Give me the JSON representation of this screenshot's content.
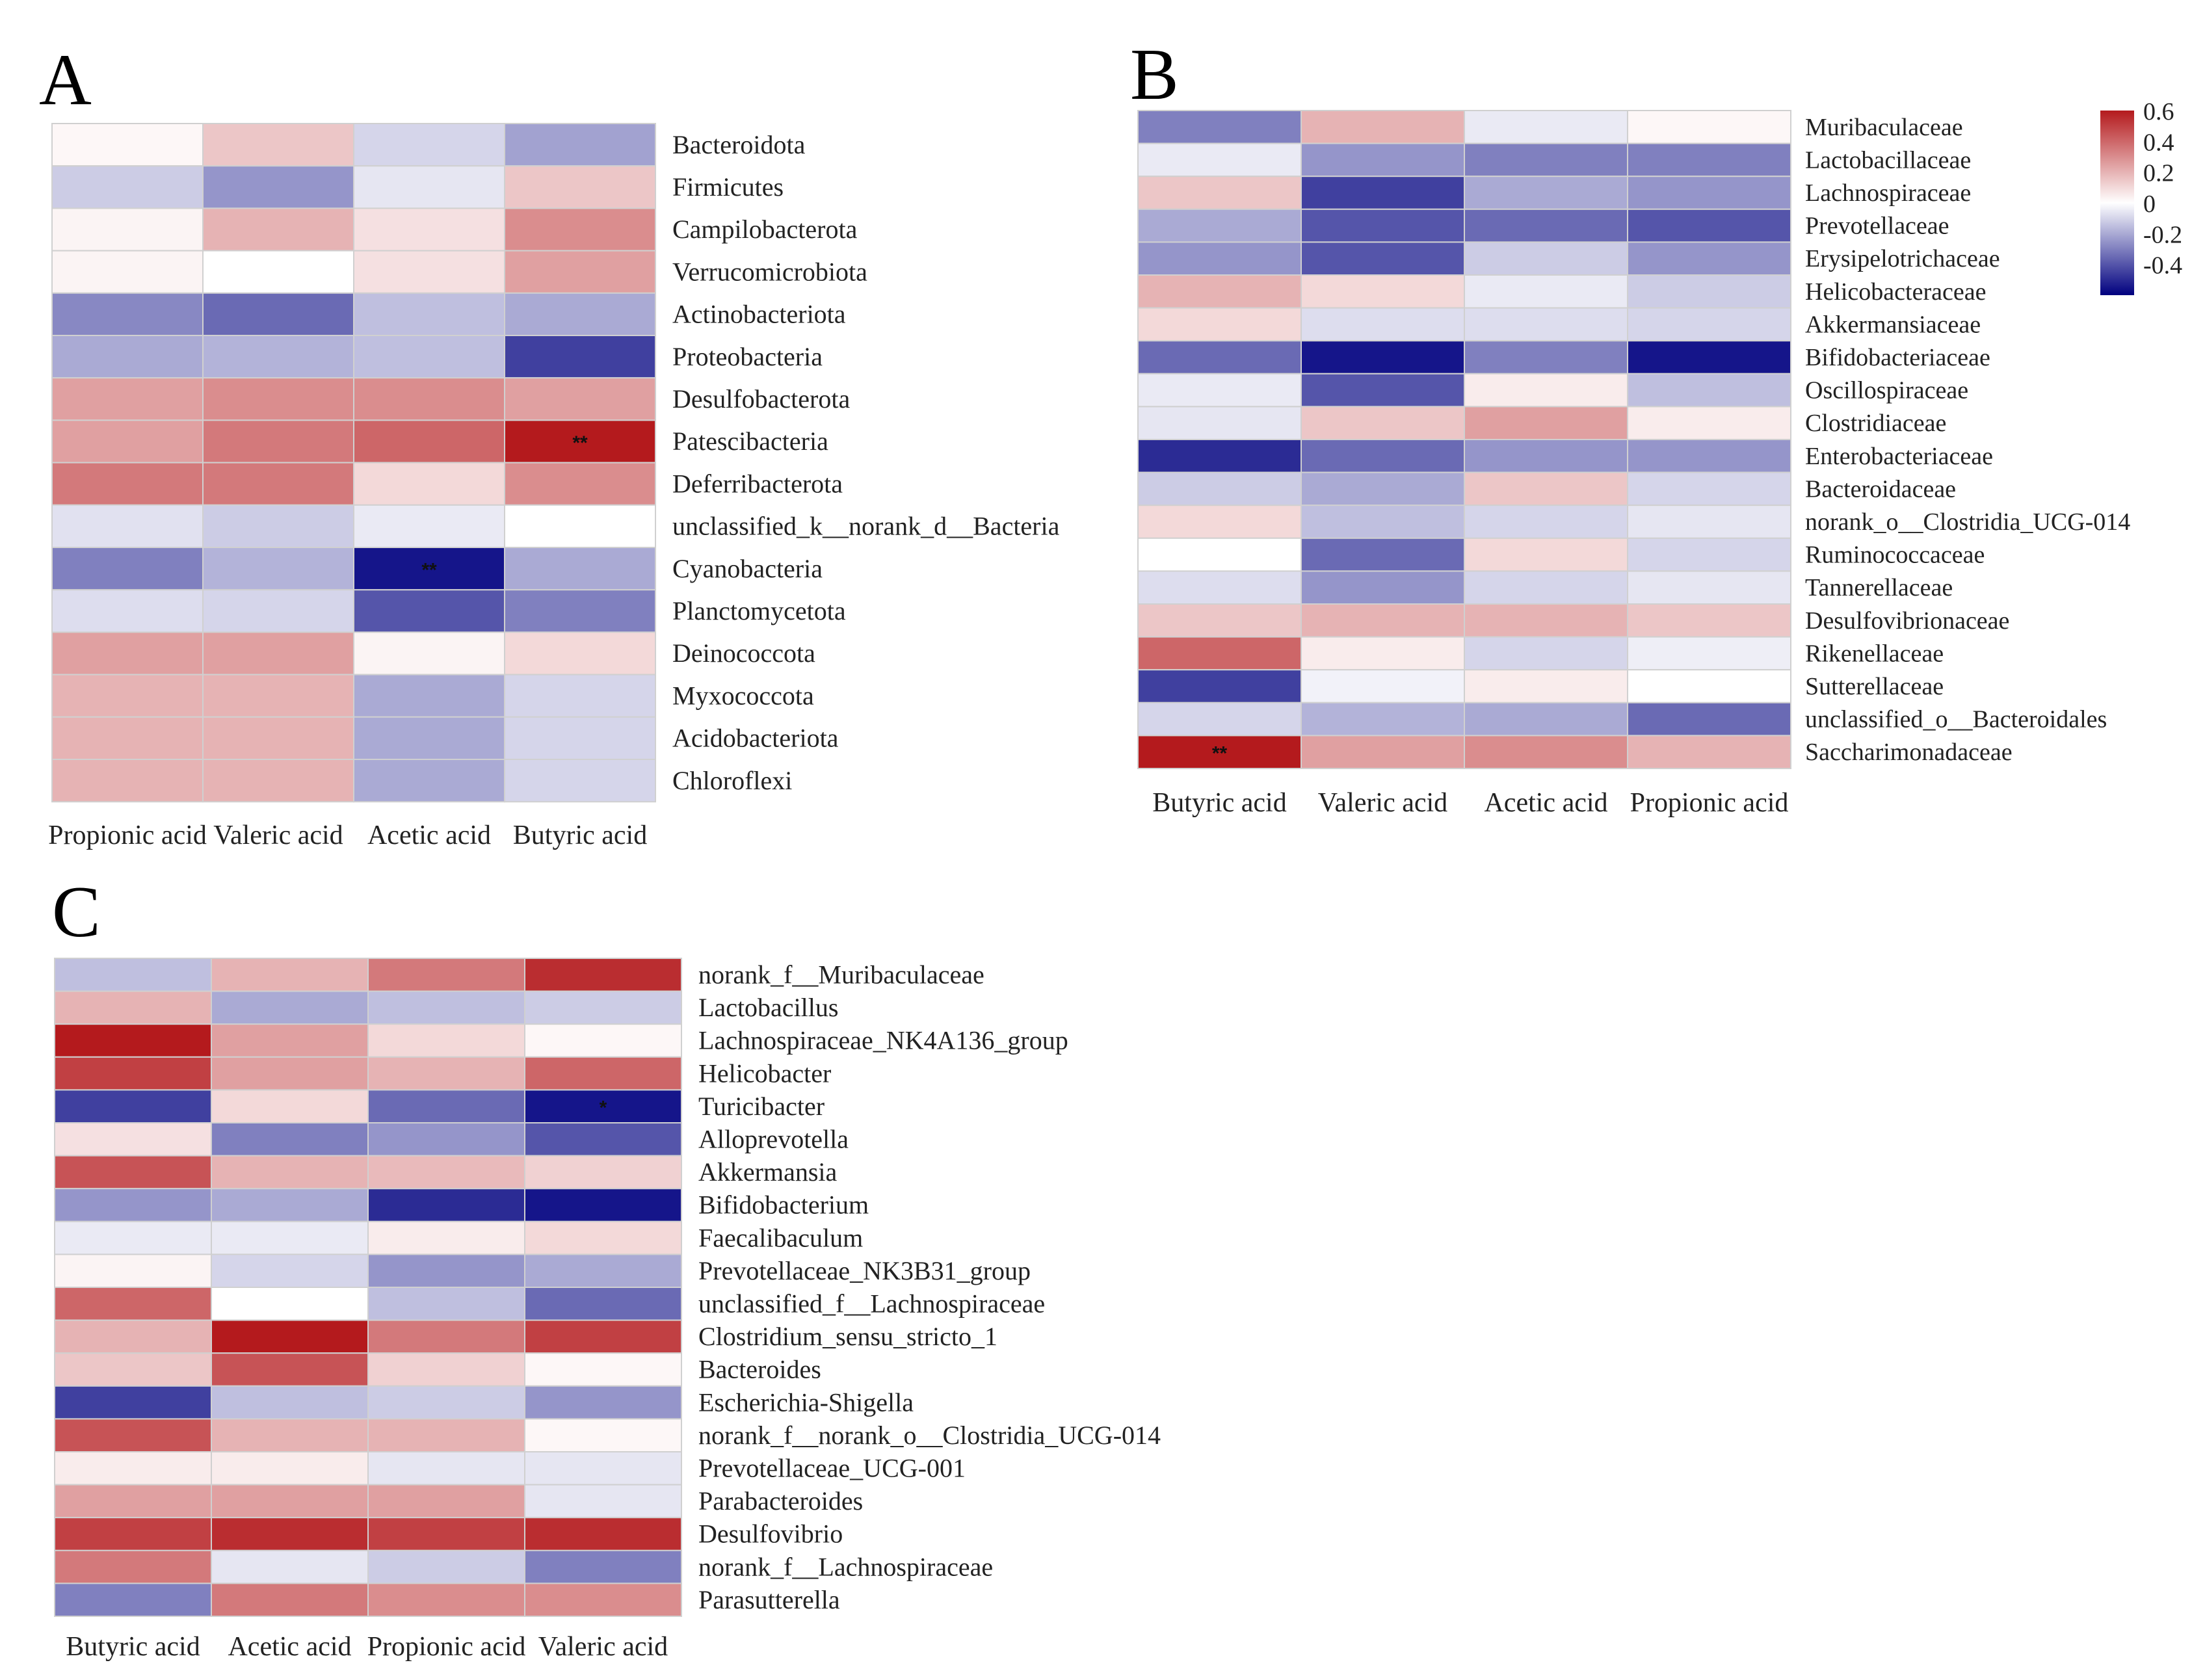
{
  "colors": {
    "neg": "#00007f",
    "mid": "#ffffff",
    "pos": "#b41a1d",
    "grid": "#d0d0d0"
  },
  "colorbar": {
    "max_label": "0.6",
    "ticks": [
      "0.6",
      "0.4",
      "0.2",
      "0",
      "-0.2",
      "-0.4"
    ]
  },
  "chart_data": [
    {
      "type": "heatmap",
      "panel": "A",
      "columns": [
        "Propionic acid",
        "Valeric acid",
        "Acetic acid",
        "Butyric acid"
      ],
      "rows": [
        "Bacteroidota",
        "Firmicutes",
        "Campilobacterota",
        "Verrucomicrobiota",
        "Actinobacteriota",
        "Proteobacteria",
        "Desulfobacterota",
        "Patescibacteria",
        "Deferribacterota",
        "unclassified_k__norank_d__Bacteria",
        "Cyanobacteria",
        "Planctomycetota",
        "Deinococcota",
        "Myxococcota",
        "Acidobacteriota",
        "Chloroflexi"
      ],
      "values": [
        [
          0.02,
          0.15,
          -0.1,
          -0.22
        ],
        [
          -0.12,
          -0.25,
          -0.06,
          0.15
        ],
        [
          0.03,
          0.2,
          0.08,
          0.3
        ],
        [
          0.03,
          0.0,
          0.08,
          0.25
        ],
        [
          -0.28,
          -0.35,
          -0.15,
          -0.2
        ],
        [
          -0.2,
          -0.18,
          -0.15,
          -0.45
        ],
        [
          0.25,
          0.3,
          0.3,
          0.25
        ],
        [
          0.25,
          0.35,
          0.4,
          0.6
        ],
        [
          0.35,
          0.35,
          0.1,
          0.3
        ],
        [
          -0.07,
          -0.12,
          -0.05,
          0.0
        ],
        [
          -0.3,
          -0.18,
          -0.55,
          -0.2
        ],
        [
          -0.08,
          -0.1,
          -0.4,
          -0.3
        ],
        [
          0.25,
          0.25,
          0.03,
          0.1
        ],
        [
          0.2,
          0.2,
          -0.2,
          -0.1
        ],
        [
          0.2,
          0.2,
          -0.2,
          -0.1
        ],
        [
          0.2,
          0.2,
          -0.2,
          -0.1
        ]
      ],
      "significance": [
        {
          "row": "Patescibacteria",
          "column": "Butyric acid",
          "label": "**"
        },
        {
          "row": "Cyanobacteria",
          "column": "Acetic acid",
          "label": "**"
        }
      ]
    },
    {
      "type": "heatmap",
      "panel": "B",
      "columns": [
        "Butyric acid",
        "Valeric acid",
        "Acetic acid",
        "Propionic acid"
      ],
      "rows": [
        "Muribaculaceae",
        "Lactobacillaceae",
        "Lachnospiraceae",
        "Prevotellaceae",
        "Erysipelotrichaceae",
        "Helicobacteraceae",
        "Akkermansiaceae",
        "Bifidobacteriaceae",
        "Oscillospiraceae",
        "Clostridiaceae",
        "Enterobacteriaceae",
        "Bacteroidaceae",
        "norank_o__Clostridia_UCG-014",
        "Ruminococcaceae",
        "Tannerellaceae",
        "Desulfovibrionaceae",
        "Rikenellaceae",
        "Sutterellaceae",
        "unclassified_o__Bacteroidales",
        "Saccharimonadaceae"
      ],
      "values": [
        [
          -0.3,
          0.2,
          -0.05,
          0.02
        ],
        [
          -0.05,
          -0.25,
          -0.3,
          -0.3
        ],
        [
          0.15,
          -0.45,
          -0.2,
          -0.25
        ],
        [
          -0.2,
          -0.4,
          -0.35,
          -0.4
        ],
        [
          -0.25,
          -0.4,
          -0.12,
          -0.25
        ],
        [
          0.2,
          0.1,
          -0.05,
          -0.12
        ],
        [
          0.1,
          -0.08,
          -0.08,
          -0.1
        ],
        [
          -0.35,
          -0.55,
          -0.3,
          -0.55
        ],
        [
          -0.05,
          -0.4,
          0.05,
          -0.15
        ],
        [
          -0.06,
          0.15,
          0.25,
          0.05
        ],
        [
          -0.5,
          -0.35,
          -0.25,
          -0.25
        ],
        [
          -0.12,
          -0.2,
          0.15,
          -0.1
        ],
        [
          0.1,
          -0.15,
          -0.1,
          -0.06
        ],
        [
          0.0,
          -0.35,
          0.1,
          -0.1
        ],
        [
          -0.08,
          -0.25,
          -0.1,
          -0.06
        ],
        [
          0.15,
          0.2,
          0.2,
          0.15
        ],
        [
          0.4,
          0.05,
          -0.1,
          -0.04
        ],
        [
          -0.45,
          -0.03,
          0.05,
          0.0
        ],
        [
          -0.1,
          -0.18,
          -0.2,
          -0.35
        ],
        [
          0.6,
          0.25,
          0.3,
          0.2
        ]
      ],
      "significance": [
        {
          "row": "Saccharimonadaceae",
          "column": "Butyric acid",
          "label": "**"
        }
      ]
    },
    {
      "type": "heatmap",
      "panel": "C",
      "columns": [
        "Butyric acid",
        "Acetic acid",
        "Propionic acid",
        "Valeric acid"
      ],
      "rows": [
        "norank_f__Muribaculaceae",
        "Lactobacillus",
        "Lachnospiraceae_NK4A136_group",
        "Helicobacter",
        "Turicibacter",
        "Alloprevotella",
        "Akkermansia",
        "Bifidobacterium",
        "Faecalibaculum",
        "Prevotellaceae_NK3B31_group",
        "unclassified_f__Lachnospiraceae",
        "Clostridium_sensu_stricto_1",
        "Bacteroides",
        "Escherichia-Shigella",
        "norank_f__norank_o__Clostridia_UCG-014",
        "Prevotellaceae_UCG-001",
        "Parabacteroides",
        "Desulfovibrio",
        "norank_f__Lachnospiraceae",
        "Parasutterella"
      ],
      "values": [
        [
          -0.15,
          0.2,
          0.35,
          0.55
        ],
        [
          0.2,
          -0.2,
          -0.15,
          -0.12
        ],
        [
          0.6,
          0.25,
          0.1,
          0.02
        ],
        [
          0.5,
          0.25,
          0.2,
          0.4
        ],
        [
          -0.45,
          0.1,
          -0.35,
          -0.55
        ],
        [
          0.08,
          -0.3,
          -0.25,
          -0.4
        ],
        [
          0.45,
          0.2,
          0.18,
          0.12
        ],
        [
          -0.25,
          -0.2,
          -0.5,
          -0.55
        ],
        [
          -0.05,
          -0.05,
          0.05,
          0.1
        ],
        [
          0.03,
          -0.1,
          -0.25,
          -0.2
        ],
        [
          0.4,
          0.0,
          -0.15,
          -0.35
        ],
        [
          0.2,
          0.6,
          0.35,
          0.5
        ],
        [
          0.15,
          0.45,
          0.12,
          0.02
        ],
        [
          -0.45,
          -0.15,
          -0.12,
          -0.25
        ],
        [
          0.45,
          0.2,
          0.2,
          0.02
        ],
        [
          0.05,
          0.05,
          -0.06,
          -0.06
        ],
        [
          0.25,
          0.25,
          0.25,
          -0.06
        ],
        [
          0.5,
          0.55,
          0.5,
          0.55
        ],
        [
          0.35,
          -0.06,
          -0.12,
          -0.3
        ],
        [
          -0.3,
          0.35,
          0.3,
          0.3
        ]
      ],
      "significance": [
        {
          "row": "Turicibacter",
          "column": "Valeric acid",
          "label": "*"
        }
      ]
    }
  ]
}
